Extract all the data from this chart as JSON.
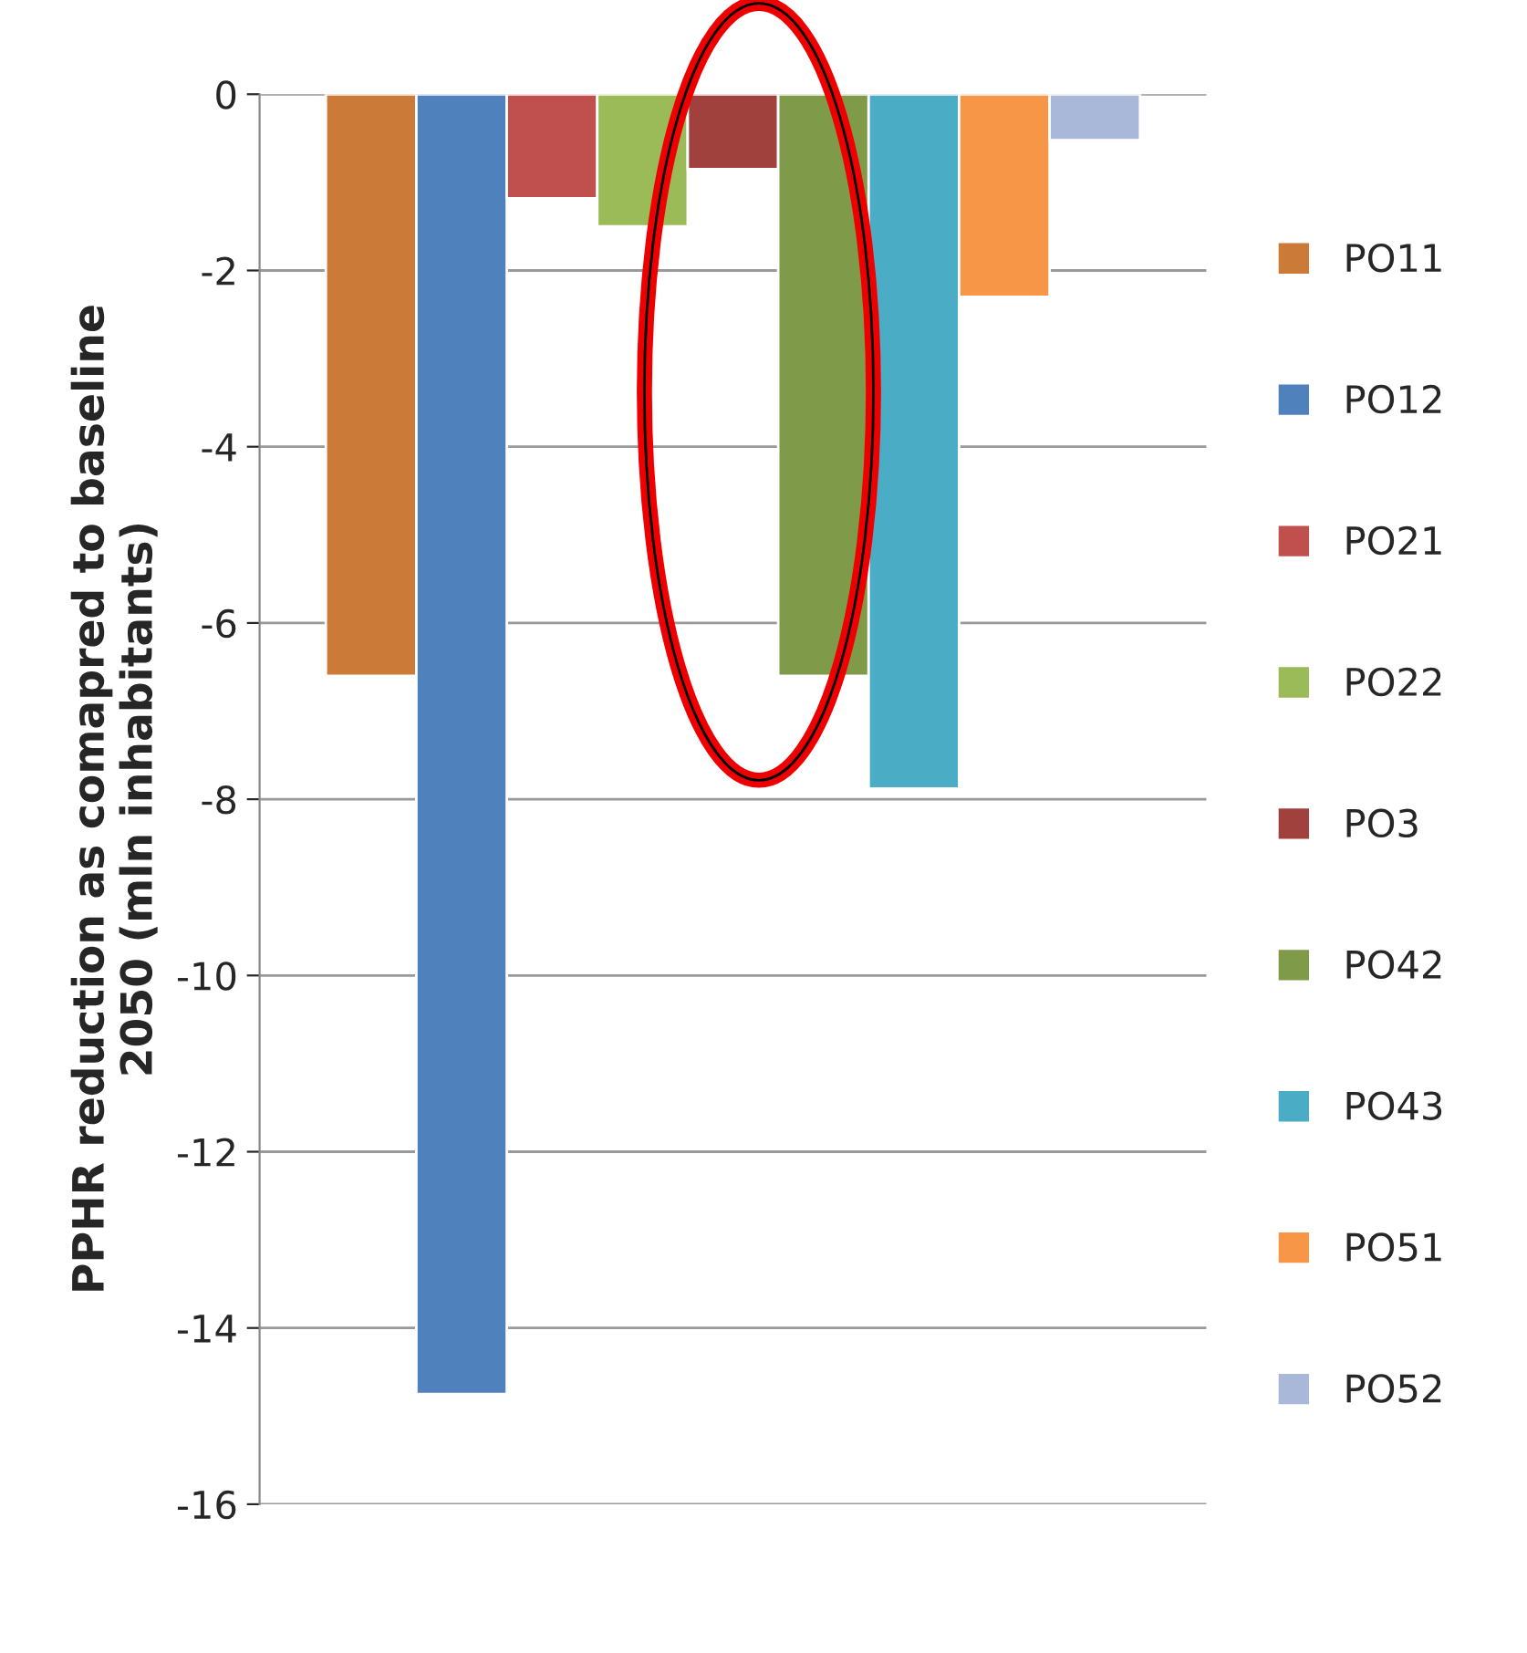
{
  "chart_data": {
    "type": "bar",
    "ylabel": "PPHR reduction as comapred to baseline\n2050 (mln inhabitants)",
    "categories": [
      null
    ],
    "series": [
      {
        "name": "PO11",
        "color": "#cc7a38",
        "values": [
          -6.6
        ]
      },
      {
        "name": "PO12",
        "color": "#4f81bd",
        "values": [
          -14.75
        ]
      },
      {
        "name": "PO21",
        "color": "#c0504d",
        "values": [
          -1.18
        ]
      },
      {
        "name": "PO22",
        "color": "#9bbb59",
        "values": [
          -1.5
        ]
      },
      {
        "name": "PO3",
        "color": "#a0413e",
        "values": [
          -0.85
        ]
      },
      {
        "name": "PO42",
        "color": "#7f9a48",
        "values": [
          -6.6
        ]
      },
      {
        "name": "PO43",
        "color": "#4bacc6",
        "values": [
          -7.88
        ]
      },
      {
        "name": "PO51",
        "color": "#f79646",
        "values": [
          -2.3
        ]
      },
      {
        "name": "PO52",
        "color": "#a9b8d9",
        "values": [
          -0.52
        ]
      }
    ],
    "ylim": [
      -16,
      0
    ],
    "yticks": [
      0,
      -2,
      -4,
      -6,
      -8,
      -10,
      -12,
      -14,
      -16
    ],
    "grid": "y",
    "legend": "right",
    "marker": "square"
  }
}
